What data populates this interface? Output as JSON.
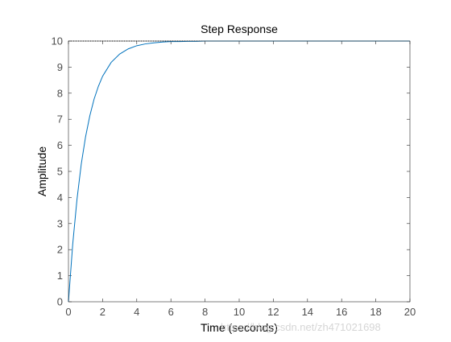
{
  "chart_data": {
    "type": "line",
    "title": "Step Response",
    "xlabel": "Time (seconds)",
    "ylabel": "Amplitude",
    "xlim": [
      0,
      20
    ],
    "ylim": [
      0,
      10
    ],
    "xticks": [
      0,
      2,
      4,
      6,
      8,
      10,
      12,
      14,
      16,
      18,
      20
    ],
    "yticks": [
      0,
      1,
      2,
      3,
      4,
      5,
      6,
      7,
      8,
      9,
      10
    ],
    "grid": false,
    "steady_state": 10,
    "series": [
      {
        "color": "#0072BD",
        "x": [
          0,
          0.25,
          0.5,
          0.75,
          1,
          1.25,
          1.5,
          1.75,
          2,
          2.5,
          3,
          3.5,
          4,
          4.5,
          5,
          5.5,
          6,
          6.5,
          7,
          7.5,
          8,
          9,
          10,
          12,
          14,
          16,
          18,
          20
        ],
        "y": [
          0,
          2.21,
          3.93,
          5.28,
          6.32,
          7.13,
          7.77,
          8.26,
          8.65,
          9.18,
          9.5,
          9.7,
          9.82,
          9.89,
          9.93,
          9.96,
          9.98,
          9.98,
          9.99,
          9.99,
          10.0,
          10.0,
          10.0,
          10.0,
          10.0,
          10.0,
          10.0,
          10.0
        ]
      }
    ],
    "watermark": "https://blog.csdn.net/zh471021698"
  }
}
